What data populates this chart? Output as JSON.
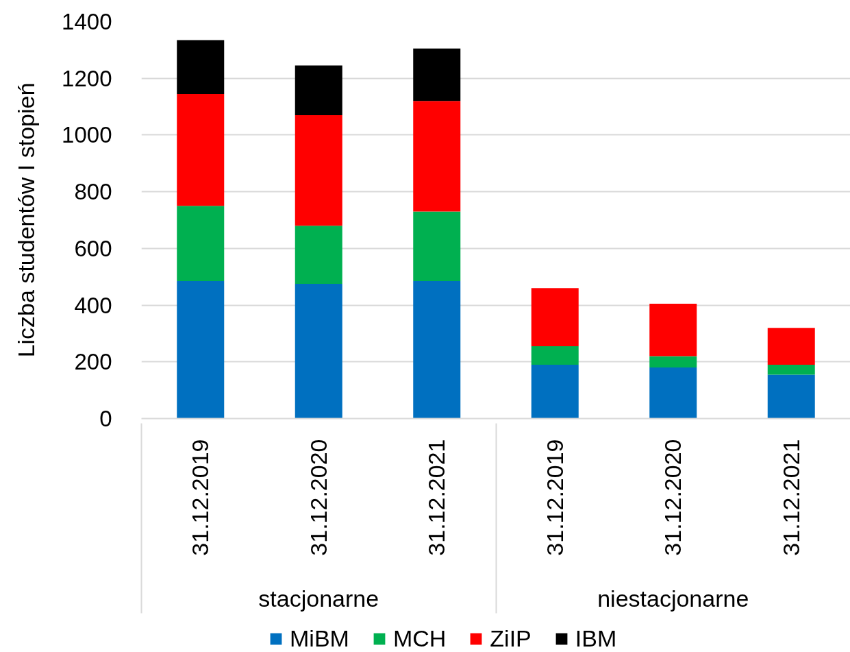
{
  "chart_data": {
    "type": "bar",
    "stacked": true,
    "ylabel": "Liczba studentów I stopień",
    "categories": [
      "31.12.2019",
      "31.12.2020",
      "31.12.2021",
      "31.12.2019",
      "31.12.2020",
      "31.12.2021"
    ],
    "annotations": [
      "stacjonarne",
      "niestacjonarne"
    ],
    "series": [
      {
        "name": "MiBM",
        "color": "#0070c0",
        "values": [
          485,
          475,
          485,
          190,
          180,
          155
        ]
      },
      {
        "name": "MCH",
        "color": "#00b050",
        "values": [
          265,
          205,
          245,
          65,
          40,
          35
        ]
      },
      {
        "name": "ZiIP",
        "color": "#ff0000",
        "values": [
          395,
          390,
          390,
          205,
          185,
          130
        ]
      },
      {
        "name": "IBM",
        "color": "#000000",
        "values": [
          190,
          175,
          185,
          null,
          null,
          null
        ]
      }
    ],
    "ylim": [
      0,
      1400
    ],
    "yticks": [
      0,
      200,
      400,
      600,
      800,
      1000,
      1200,
      1400
    ],
    "grid": "y",
    "legend": "bottom"
  }
}
